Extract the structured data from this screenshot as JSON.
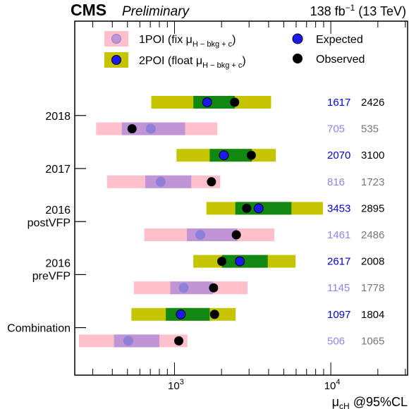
{
  "header": {
    "experiment": "CMS",
    "status": "Preliminary",
    "lumi": "138 fb",
    "lumi_exp": "−1",
    "energy": " (13 TeV)"
  },
  "legend": {
    "poi1": {
      "text": "1POI (fix μ",
      "sub": "H − bkg + c",
      "close": ")"
    },
    "poi2": {
      "text": "2POI (float μ",
      "sub": "H − bkg + c",
      "close": ")"
    },
    "expected": "Expected",
    "observed": "Observed"
  },
  "colors": {
    "poi1_band2": "#ffc0cb",
    "poi1_band1": "#bf95d6",
    "poi1_expected": "#8e7fd8",
    "poi2_band2": "#c4c400",
    "poi2_band1": "#118811",
    "expected": "#1a1aee",
    "observed": "#000000",
    "poi1_exp_text": "#8888ee",
    "poi1_obs_text": "#777777",
    "poi2_exp_text": "#0000dd",
    "poi2_obs_text": "#000000"
  },
  "chart_data": {
    "type": "limit-bands",
    "title": "",
    "xlabel": "μ",
    "xlabel_sub": "cH",
    "xlabel_suffix": " @95%CL",
    "x_scale": "log",
    "xlim": [
      230,
      31000
    ],
    "x_ticks": [
      {
        "value": 1000,
        "base": "10",
        "exp": "3"
      },
      {
        "value": 10000,
        "base": "10",
        "exp": "4"
      }
    ],
    "groups": [
      "2018",
      "2017",
      "2016 postVFP",
      "2016 preVFP",
      "Combination"
    ],
    "group_labels": [
      {
        "lines": [
          "2018"
        ]
      },
      {
        "lines": [
          "2017"
        ]
      },
      {
        "lines": [
          "2016",
          "postVFP"
        ]
      },
      {
        "lines": [
          "2016",
          "preVFP"
        ]
      },
      {
        "lines": [
          "Combination"
        ]
      }
    ],
    "rows": [
      {
        "group": "2018",
        "poi": "2POI",
        "band2": [
          710,
          4150
        ],
        "band1": [
          1320,
          2430
        ],
        "expected": 1617,
        "observed": 2426
      },
      {
        "group": "2018",
        "poi": "1POI",
        "band2": [
          315,
          1880
        ],
        "band1": [
          460,
          1170
        ],
        "expected": 705,
        "observed": 535
      },
      {
        "group": "2017",
        "poi": "2POI",
        "band2": [
          1030,
          4450
        ],
        "band1": [
          1680,
          3130
        ],
        "expected": 2070,
        "observed": 3100
      },
      {
        "group": "2017",
        "poi": "1POI",
        "band2": [
          370,
          1960
        ],
        "band1": [
          650,
          1280
        ],
        "expected": 816,
        "observed": 1723
      },
      {
        "group": "2016 postVFP",
        "poi": "2POI",
        "band2": [
          1600,
          8900
        ],
        "band1": [
          2450,
          5600
        ],
        "expected": 3453,
        "observed": 2895
      },
      {
        "group": "2016 postVFP",
        "poi": "1POI",
        "band2": [
          640,
          4350
        ],
        "band1": [
          1200,
          2520
        ],
        "expected": 1461,
        "observed": 2486
      },
      {
        "group": "2016 preVFP",
        "poi": "2POI",
        "band2": [
          1320,
          5950
        ],
        "band1": [
          2010,
          3950
        ],
        "expected": 2617,
        "observed": 2008
      },
      {
        "group": "2016 preVFP",
        "poi": "1POI",
        "band2": [
          550,
          2930
        ],
        "band1": [
          940,
          1760
        ],
        "expected": 1145,
        "observed": 1778
      },
      {
        "group": "Combination",
        "poi": "2POI",
        "band2": [
          530,
          2460
        ],
        "band1": [
          880,
          1680
        ],
        "expected": 1097,
        "observed": 1804
      },
      {
        "group": "Combination",
        "poi": "1POI",
        "band2": [
          245,
          1210
        ],
        "band1": [
          410,
          800
        ],
        "expected": 506,
        "observed": 1065
      }
    ],
    "value_labels": [
      {
        "expected": "1617",
        "observed": "2426"
      },
      {
        "expected": "705",
        "observed": "535"
      },
      {
        "expected": "2070",
        "observed": "3100"
      },
      {
        "expected": "816",
        "observed": "1723"
      },
      {
        "expected": "3453",
        "observed": "2895"
      },
      {
        "expected": "1461",
        "observed": "2486"
      },
      {
        "expected": "2617",
        "observed": "2008"
      },
      {
        "expected": "1145",
        "observed": "1778"
      },
      {
        "expected": "1097",
        "observed": "1804"
      },
      {
        "expected": "506",
        "observed": "1065"
      }
    ],
    "grid": false,
    "legend_position": "top"
  }
}
